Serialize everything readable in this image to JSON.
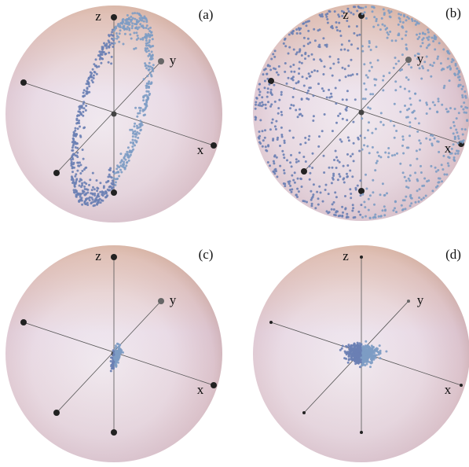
{
  "panels": [
    {
      "label": "(a)",
      "axes": {
        "x": "x",
        "y": "y",
        "z": "z"
      }
    },
    {
      "label": "(b)",
      "axes": {
        "x": "x",
        "y": "y",
        "z": "z"
      }
    },
    {
      "label": "(c)",
      "axes": {
        "x": "x",
        "y": "y",
        "z": "z"
      }
    },
    {
      "label": "(d)",
      "axes": {
        "x": "x",
        "y": "y",
        "z": "z"
      }
    }
  ]
}
